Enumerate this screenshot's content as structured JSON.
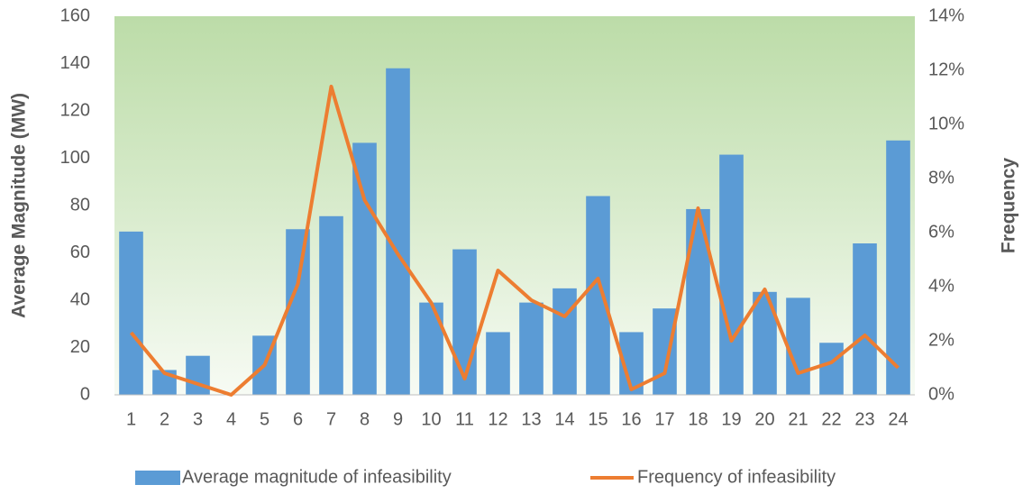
{
  "chart_data": {
    "type": "bar-line",
    "categories": [
      "1",
      "2",
      "3",
      "4",
      "5",
      "6",
      "7",
      "8",
      "9",
      "10",
      "11",
      "12",
      "13",
      "14",
      "15",
      "16",
      "17",
      "18",
      "19",
      "20",
      "21",
      "22",
      "23",
      "24"
    ],
    "y_label": "Average Magnitude (MW)",
    "y2_label": "Frequency",
    "ylim": [
      0,
      160
    ],
    "yticks": [
      0,
      20,
      40,
      60,
      80,
      100,
      120,
      140,
      160
    ],
    "y2lim": [
      0,
      14
    ],
    "y2ticks": [
      {
        "value": 0,
        "label": "0%"
      },
      {
        "value": 2,
        "label": "2%"
      },
      {
        "value": 4,
        "label": "4%"
      },
      {
        "value": 6,
        "label": "6%"
      },
      {
        "value": 8,
        "label": "8%"
      },
      {
        "value": 10,
        "label": "10%"
      },
      {
        "value": 12,
        "label": "12%"
      },
      {
        "value": 14,
        "label": "14%"
      }
    ],
    "grid": false,
    "legend": "bottom",
    "series": [
      {
        "name": "Average magnitude of infeasibility",
        "type": "bar",
        "color": "#5b9bd5",
        "values": [
          69,
          10.5,
          16.5,
          0,
          25,
          70,
          75.5,
          106.5,
          138,
          39,
          61.5,
          26.5,
          39,
          45,
          84,
          26.5,
          36.5,
          78.5,
          101.5,
          43.5,
          41,
          22,
          64,
          107.5
        ]
      },
      {
        "name": "Frequency of infeasibility",
        "type": "line",
        "axis": "y2",
        "color": "#ed7d31",
        "values": [
          2.3,
          0.8,
          0.4,
          0,
          1.1,
          4.1,
          11.4,
          7.2,
          5.2,
          3.4,
          0.6,
          4.6,
          3.5,
          2.9,
          4.3,
          0.2,
          0.8,
          6.9,
          2.0,
          3.9,
          0.8,
          1.2,
          2.2,
          1.0
        ]
      }
    ]
  }
}
